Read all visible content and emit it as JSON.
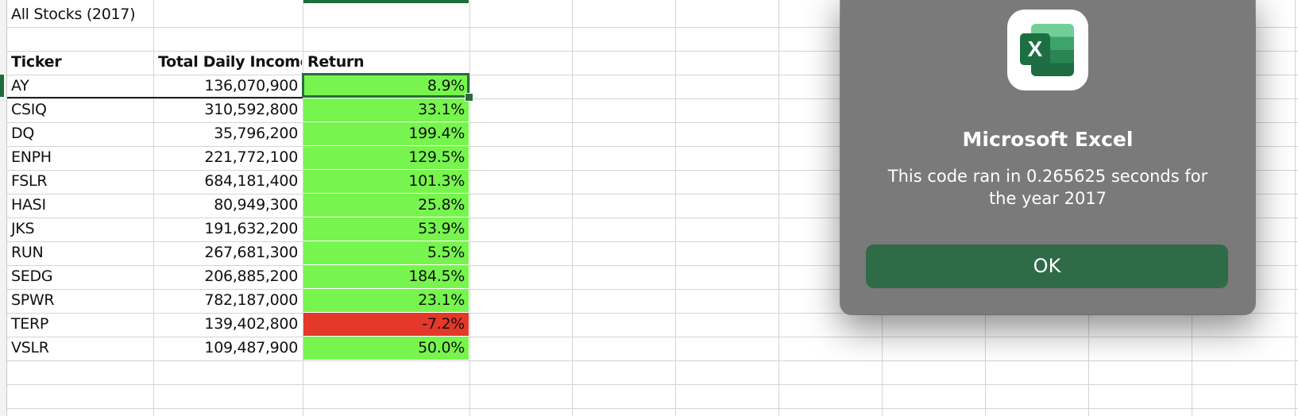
{
  "sheet": {
    "title": "All Stocks (2017)",
    "headers": {
      "ticker": "Ticker",
      "income": "Total Daily Income",
      "return": "Return"
    },
    "rows": [
      {
        "ticker": "AY",
        "income": "136,070,900",
        "return": "8.9%"
      },
      {
        "ticker": "CSIQ",
        "income": "310,592,800",
        "return": "33.1%"
      },
      {
        "ticker": "DQ",
        "income": "35,796,200",
        "return": "199.4%"
      },
      {
        "ticker": "ENPH",
        "income": "221,772,100",
        "return": "129.5%"
      },
      {
        "ticker": "FSLR",
        "income": "684,181,400",
        "return": "101.3%"
      },
      {
        "ticker": "HASI",
        "income": "80,949,300",
        "return": "25.8%"
      },
      {
        "ticker": "JKS",
        "income": "191,632,200",
        "return": "53.9%"
      },
      {
        "ticker": "RUN",
        "income": "267,681,300",
        "return": "5.5%"
      },
      {
        "ticker": "SEDG",
        "income": "206,885,200",
        "return": "184.5%"
      },
      {
        "ticker": "SPWR",
        "income": "782,187,000",
        "return": "23.1%"
      },
      {
        "ticker": "TERP",
        "income": "139,402,800",
        "return": "-7.2%"
      },
      {
        "ticker": "VSLR",
        "income": "109,487,900",
        "return": "50.0%"
      }
    ],
    "colors": {
      "positive": "#77f54e",
      "negative": "#e3382a",
      "accent": "#1e6b3c"
    }
  },
  "dialog": {
    "app_icon": "excel-icon",
    "app_icon_letter": "X",
    "title": "Microsoft Excel",
    "message": "This code ran in 0.265625 seconds for the year 2017",
    "ok_label": "OK"
  }
}
